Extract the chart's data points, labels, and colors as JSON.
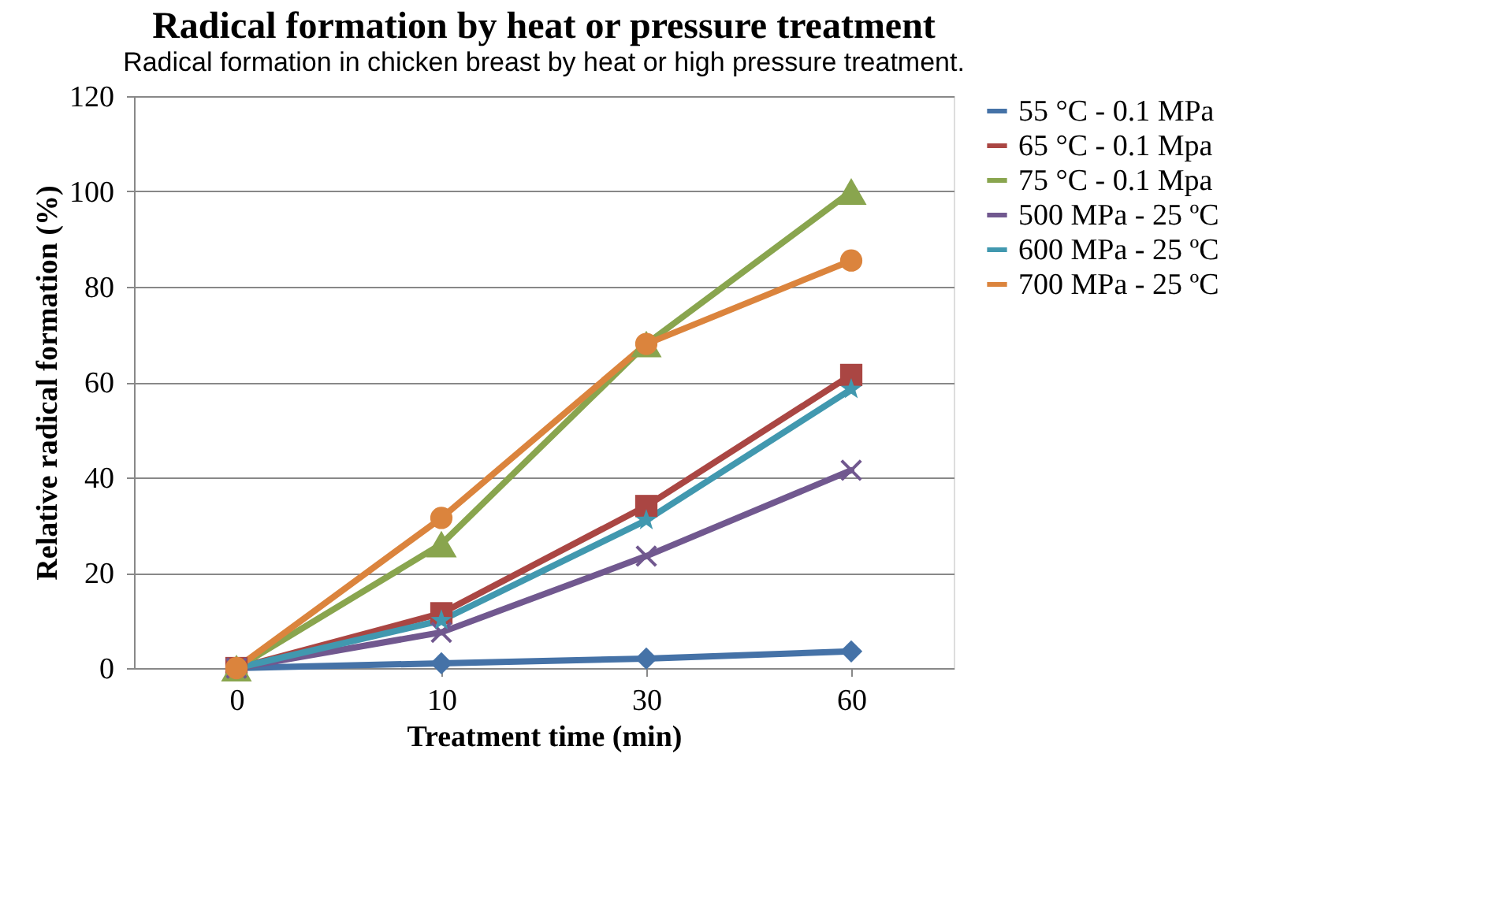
{
  "chart_data": {
    "type": "line",
    "title": "Radical formation by heat or pressure treatment",
    "annotations": [
      "Radical formation in chicken breast by heat or high pressure treatment."
    ],
    "xlabel": "Treatment time (min)",
    "ylabel": "Relative radical formation (%)",
    "categories": [
      "0",
      "10",
      "30",
      "60"
    ],
    "ylim": [
      0,
      120
    ],
    "yticks": [
      0,
      20,
      40,
      60,
      80,
      100,
      120
    ],
    "grid": "y",
    "legend": "right",
    "series": [
      {
        "name": "55 °C - 0.1 MPa",
        "color": "#4572a7",
        "marker": "diamond",
        "values": [
          0,
          1,
          2,
          3.5
        ]
      },
      {
        "name": "65 °C - 0.1 Mpa",
        "color": "#aa4643",
        "marker": "square",
        "values": [
          0,
          11.5,
          34,
          61.5
        ]
      },
      {
        "name": "75 °C - 0.1 Mpa",
        "color": "#89a54e",
        "marker": "triangle",
        "values": [
          0,
          26,
          68,
          100
        ]
      },
      {
        "name": "500 MPa - 25 ºC",
        "color": "#71588f",
        "marker": "cross",
        "values": [
          0,
          7.5,
          23.5,
          41.5
        ]
      },
      {
        "name": "600 MPa - 25 ºC",
        "color": "#4198af",
        "marker": "star",
        "values": [
          0,
          10,
          31,
          58.5
        ]
      },
      {
        "name": "700 MPa - 25 ºC",
        "color": "#db843d",
        "marker": "circle",
        "values": [
          0,
          31.5,
          68,
          85.5
        ]
      }
    ]
  }
}
